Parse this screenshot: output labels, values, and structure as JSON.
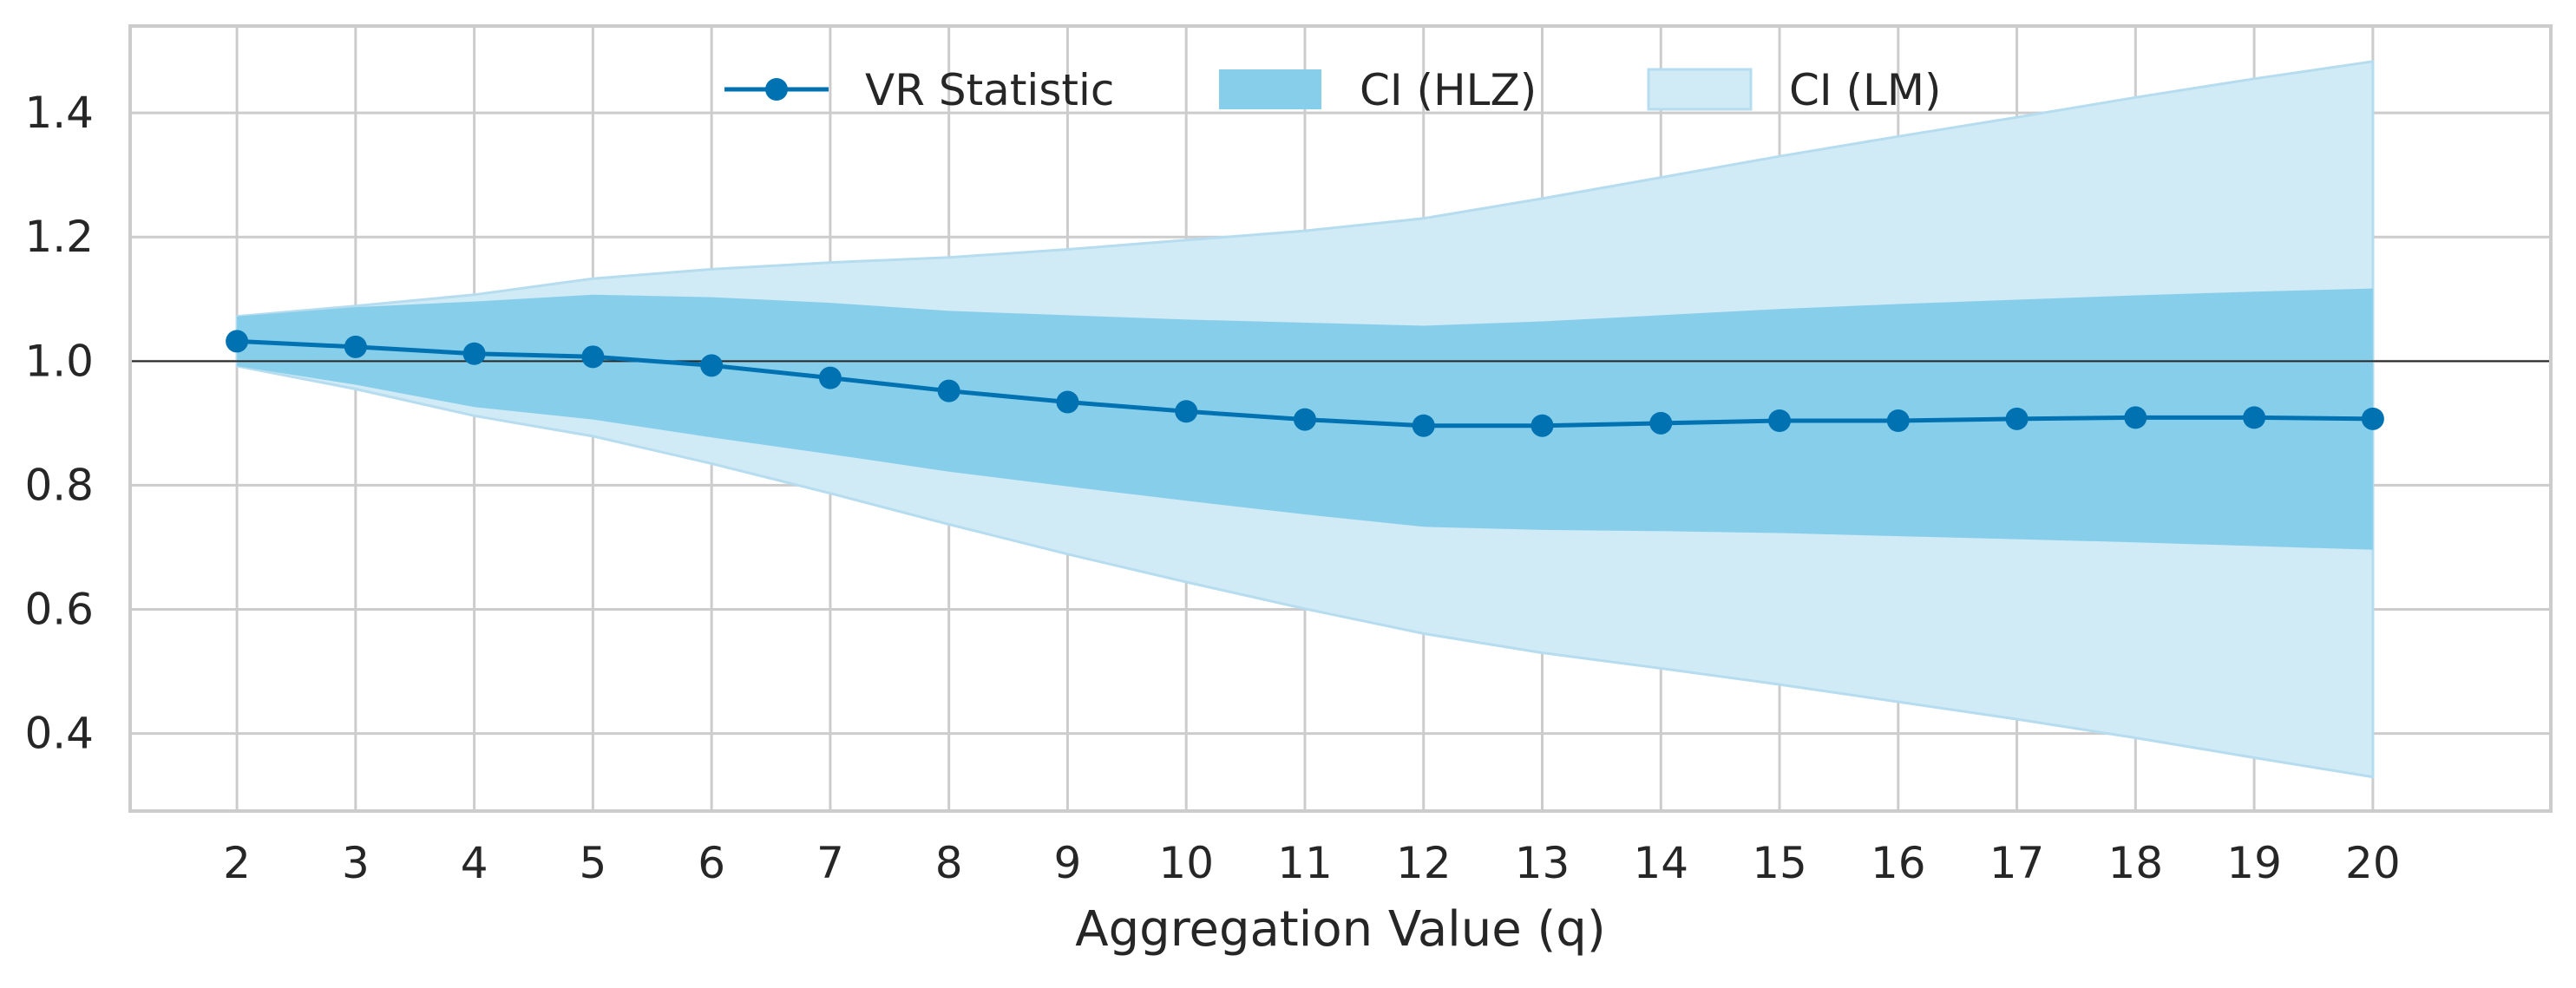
{
  "chart_data": {
    "type": "line",
    "title": "",
    "xlabel": "Aggregation Value (q)",
    "ylabel": "",
    "x": [
      2,
      3,
      4,
      5,
      6,
      7,
      8,
      9,
      10,
      11,
      12,
      13,
      14,
      15,
      16,
      17,
      18,
      19,
      20
    ],
    "xlim": [
      1.1,
      21.5
    ],
    "ylim": [
      0.275,
      1.54
    ],
    "yticks": [
      0.4,
      0.6,
      0.8,
      1.0,
      1.2,
      1.4
    ],
    "ytick_labels": [
      "0.4",
      "0.6",
      "0.8",
      "1.0",
      "1.2",
      "1.4"
    ],
    "xtick_labels": [
      "2",
      "3",
      "4",
      "5",
      "6",
      "7",
      "8",
      "9",
      "10",
      "11",
      "12",
      "13",
      "14",
      "15",
      "16",
      "17",
      "18",
      "19",
      "20"
    ],
    "reference_line": 1.0,
    "grid": true,
    "legend_position": "top-center",
    "series": [
      {
        "name": "VR Statistic",
        "kind": "line-marker",
        "color": "#0072b2",
        "values": [
          1.032,
          1.023,
          1.012,
          1.007,
          0.993,
          0.973,
          0.952,
          0.934,
          0.919,
          0.906,
          0.896,
          0.896,
          0.9,
          0.904,
          0.904,
          0.907,
          0.909,
          0.909,
          0.907
        ]
      },
      {
        "name": "CI (HLZ)",
        "kind": "band",
        "color": "#87ceeb",
        "lower": [
          0.992,
          0.962,
          0.926,
          0.906,
          0.877,
          0.85,
          0.822,
          0.798,
          0.775,
          0.753,
          0.733,
          0.728,
          0.726,
          0.723,
          0.718,
          0.713,
          0.708,
          0.702,
          0.696
        ],
        "upper": [
          1.072,
          1.087,
          1.096,
          1.107,
          1.103,
          1.094,
          1.081,
          1.074,
          1.067,
          1.062,
          1.057,
          1.064,
          1.074,
          1.084,
          1.092,
          1.099,
          1.106,
          1.112,
          1.117
        ]
      },
      {
        "name": "CI (LM)",
        "kind": "band",
        "color": "#d0eaf6",
        "lower": [
          0.992,
          0.955,
          0.912,
          0.879,
          0.835,
          0.787,
          0.737,
          0.689,
          0.644,
          0.601,
          0.561,
          0.53,
          0.505,
          0.479,
          0.451,
          0.423,
          0.393,
          0.361,
          0.33
        ],
        "upper": [
          1.072,
          1.089,
          1.107,
          1.133,
          1.148,
          1.159,
          1.167,
          1.18,
          1.195,
          1.21,
          1.23,
          1.262,
          1.296,
          1.33,
          1.362,
          1.393,
          1.425,
          1.455,
          1.483
        ]
      }
    ]
  }
}
